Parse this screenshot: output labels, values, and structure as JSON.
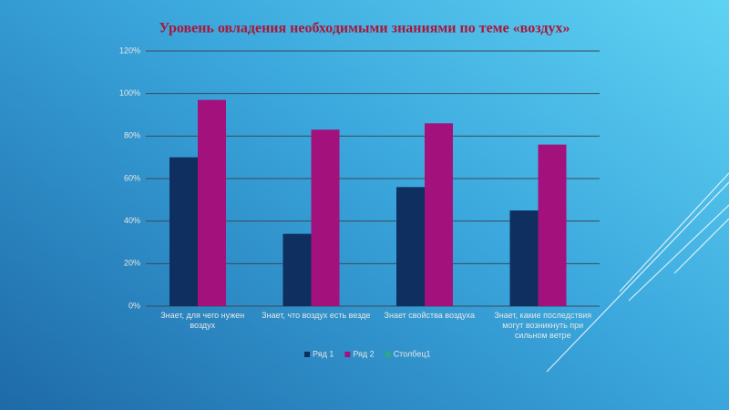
{
  "chart_data": {
    "type": "bar",
    "title": "Уровень овладения необходимыми знаниями по теме  «воздух»",
    "categories": [
      "Знает, для чего нужен воздух",
      "Знает, что воздух есть везде",
      "Знает свойства воздуха",
      "Знает, какие последствия могут возникнуть при сильном ветре"
    ],
    "series": [
      {
        "name": "Ряд 1",
        "color": "#0e2f5f",
        "values": [
          70,
          34,
          56,
          45
        ]
      },
      {
        "name": "Ряд 2",
        "color": "#a3127c",
        "values": [
          97,
          83,
          86,
          76
        ]
      },
      {
        "name": "Столбец1",
        "color": "#2aa88a",
        "values": [
          null,
          null,
          null,
          null
        ]
      }
    ],
    "ylim": [
      0,
      120
    ],
    "yticks": [
      {
        "value": 0,
        "label": "0%"
      },
      {
        "value": 20,
        "label": "20%"
      },
      {
        "value": 40,
        "label": "40%"
      },
      {
        "value": 60,
        "label": "60%"
      },
      {
        "value": 80,
        "label": "80%"
      },
      {
        "value": 100,
        "label": "100%"
      },
      {
        "value": 120,
        "label": "120%"
      }
    ],
    "grid": true,
    "legend": "bottom"
  }
}
